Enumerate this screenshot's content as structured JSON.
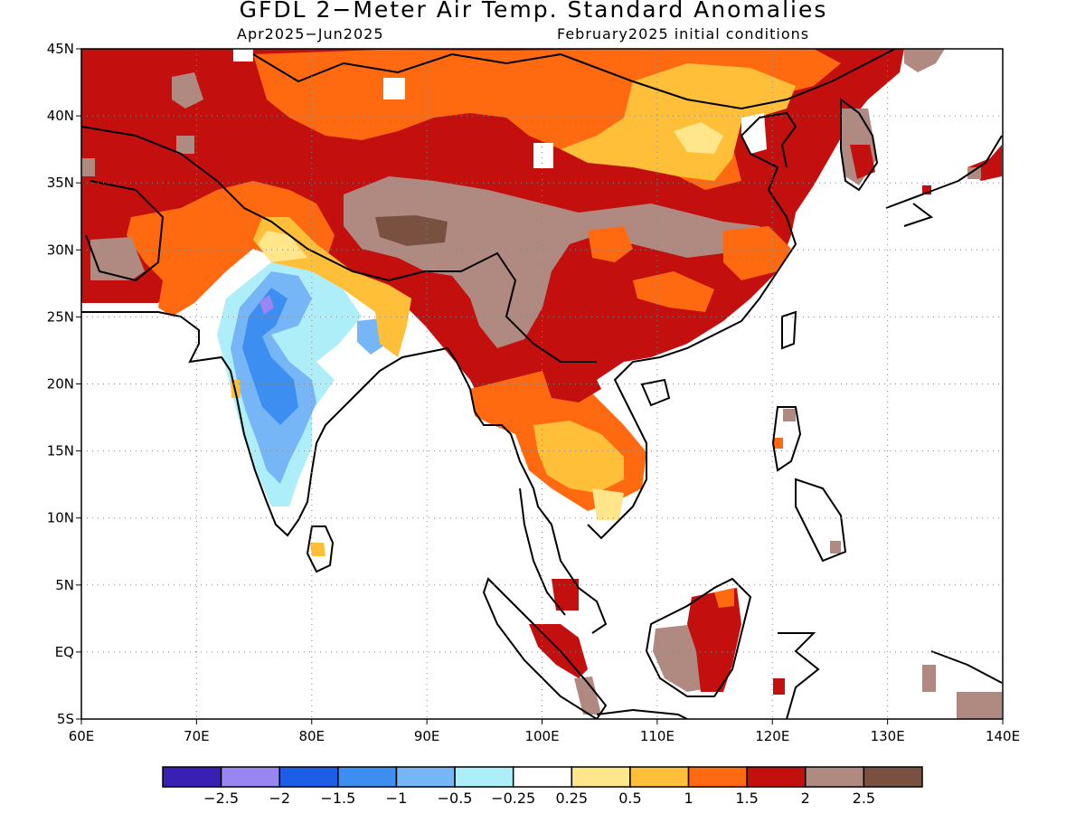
{
  "title": "GFDL 2−Meter Air Temp. Standard Anomalies",
  "subtitle_left": "Apr2025−Jun2025",
  "subtitle_right": "February2025 initial conditions",
  "map_extent": {
    "lon": [
      60,
      140
    ],
    "lat": [
      -5,
      45
    ]
  },
  "x_ticks": [
    "60E",
    "70E",
    "80E",
    "90E",
    "100E",
    "110E",
    "120E",
    "130E",
    "140E"
  ],
  "y_ticks": [
    "45N",
    "40N",
    "35N",
    "30N",
    "25N",
    "20N",
    "15N",
    "10N",
    "5N",
    "EQ",
    "5S"
  ],
  "colorbar": {
    "colors": [
      "#3a1fb4",
      "#9a86f0",
      "#1d5ee6",
      "#3c8ef0",
      "#76b6f6",
      "#aeeef8",
      "#ffffff",
      "#ffe68a",
      "#ffbf38",
      "#ff6a10",
      "#c40f0f",
      "#b08a80",
      "#7a5040"
    ],
    "labels": [
      "−2.5",
      "−2",
      "−1.5",
      "−1",
      "−0.5",
      "−0.25",
      "0.25",
      "0.5",
      "1",
      "1.5",
      "2",
      "2.5"
    ]
  }
}
